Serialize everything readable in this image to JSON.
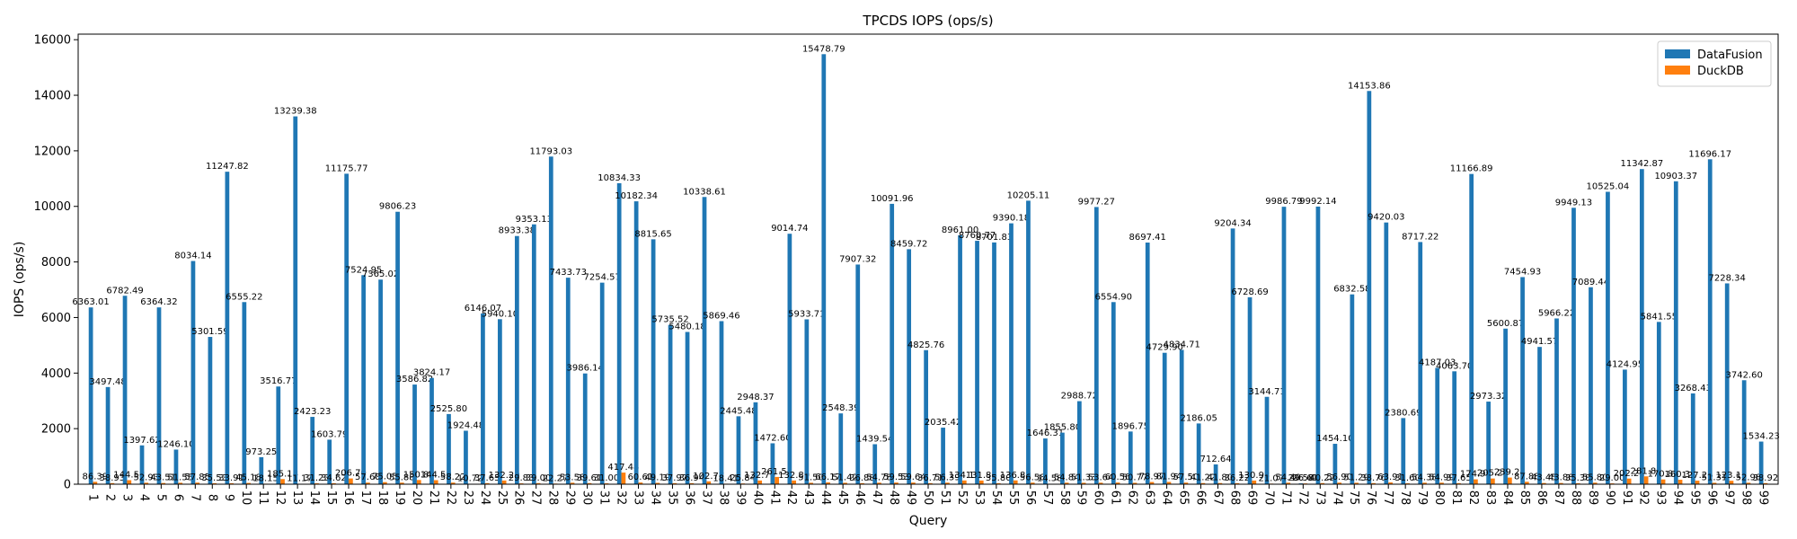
{
  "chart_data": {
    "type": "bar",
    "title": "TPCDS IOPS (ops/s)",
    "xlabel": "Query",
    "ylabel": "IOPS (ops/s)",
    "ylim": [
      0,
      16200
    ],
    "yticks": [
      0,
      2000,
      4000,
      6000,
      8000,
      10000,
      12000,
      14000,
      16000
    ],
    "legend_position": "top-right",
    "grid": false,
    "colors": {
      "DataFusion": "#1f77b4",
      "DuckDB": "#ff7f0e"
    },
    "categories": [
      "1",
      "2",
      "3",
      "4",
      "5",
      "6",
      "7",
      "8",
      "9",
      "10",
      "11",
      "12",
      "13",
      "14",
      "15",
      "16",
      "17",
      "18",
      "19",
      "20",
      "21",
      "22",
      "23",
      "24",
      "25",
      "26",
      "27",
      "28",
      "29",
      "30",
      "31",
      "32",
      "33",
      "34",
      "35",
      "36",
      "37",
      "38",
      "39",
      "40",
      "41",
      "42",
      "43",
      "44",
      "45",
      "46",
      "47",
      "48",
      "49",
      "50",
      "51",
      "52",
      "53",
      "54",
      "55",
      "56",
      "57",
      "58",
      "59",
      "60",
      "61",
      "62",
      "63",
      "64",
      "65",
      "66",
      "67",
      "68",
      "69",
      "70",
      "71",
      "72",
      "73",
      "74",
      "75",
      "76",
      "77",
      "78",
      "79",
      "80",
      "81",
      "82",
      "83",
      "84",
      "85",
      "86",
      "87",
      "88",
      "89",
      "90",
      "91",
      "92",
      "93",
      "94",
      "95",
      "96",
      "97",
      "98",
      "99"
    ],
    "series": [
      {
        "name": "DataFusion",
        "values": [
          6363.01,
          3497.48,
          6782.49,
          1397.62,
          6364.32,
          1246.1,
          8034.14,
          5301.59,
          11247.82,
          6555.22,
          973.25,
          3516.77,
          13239.38,
          2423.23,
          1603.79,
          11175.77,
          7524.95,
          7365.02,
          9806.23,
          3586.82,
          3824.17,
          2525.8,
          1924.48,
          6146.07,
          5940.1,
          8933.38,
          9353.13,
          11793.03,
          7433.73,
          3986.14,
          7254.57,
          10834.33,
          10182.34,
          8815.65,
          5735.52,
          5480.18,
          10338.61,
          5869.46,
          2445.48,
          2948.37,
          1472.6,
          9014.74,
          5933.71,
          15478.79,
          2548.39,
          7907.32,
          1439.54,
          10091.96,
          8459.72,
          4825.76,
          2035.42,
          8961.0,
          8760.77,
          8701.83,
          9390.18,
          10205.11,
          1646.31,
          1855.8,
          2988.72,
          9977.27,
          6554.9,
          1896.75,
          8697.41,
          4729.9,
          4834.71,
          2186.05,
          712.64,
          9204.34,
          6728.69,
          3144.71,
          9986.79,
          29.58,
          9992.14,
          1454.1,
          6832.58,
          14153.86,
          9420.03,
          2380.69,
          8717.22,
          4187.03,
          4063.7,
          11166.89,
          2973.32,
          5600.87,
          7454.93,
          4941.57,
          5966.22,
          9949.13,
          7089.44,
          10525.04,
          4124.95,
          11342.87,
          5841.55,
          10903.37,
          3268.43,
          11696.17,
          7228.34,
          3742.6,
          1534.23
        ],
        "labels": [
          "6363.01",
          "3497.48",
          "6782.49",
          "1397.62",
          "6364.32",
          "1246.10",
          "8034.14",
          "5301.59",
          "11247.82",
          "6555.22",
          "973.25",
          "3516.77",
          "13239.38",
          "2423.23",
          "1603.79",
          "11175.77",
          "7524.95",
          "7365.02",
          "9806.23",
          "3586.82",
          "3824.17",
          "2525.80",
          "1924.48",
          "6146.07",
          "5940.10",
          "8933.38",
          "9353.13",
          "11793.03",
          "7433.73",
          "3986.14",
          "7254.57",
          "10834.33",
          "10182.34",
          "8815.65",
          "5735.52",
          "5480.18",
          "10338.61",
          "5869.46",
          "2445.48",
          "2948.37",
          "1472.60",
          "9014.74",
          "5933.71",
          "15478.79",
          "2548.39",
          "7907.32",
          "1439.54",
          "10091.96",
          "8459.72",
          "4825.76",
          "2035.42",
          "8961.00",
          "8760.77",
          "8701.83",
          "9390.18",
          "10205.11",
          "1646.31",
          "1855.80",
          "2988.72",
          "9977.27",
          "6554.90",
          "1896.75",
          "8697.41",
          "4729.90",
          "4834.71",
          "2186.05",
          "712.64",
          "9204.34",
          "6728.69",
          "3144.71",
          "9986.79",
          "29.58",
          "9992.14",
          "1454.10",
          "6832.58",
          "14153.86",
          "9420.03",
          "2380.69",
          "8717.22",
          "4187.03",
          "4063.70",
          "11166.89",
          "2973.32",
          "5600.87",
          "7454.93",
          "4941.57",
          "5966.22",
          "9949.13",
          "7089.44",
          "10525.04",
          "4124.95",
          "11342.87",
          "5841.55",
          "10903.37",
          "3268.43",
          "11696.17",
          "7228.34",
          "3742.60",
          "1534.23"
        ]
      },
      {
        "name": "DuckDB",
        "values": [
          86.39,
          38.93,
          144.58,
          52.93,
          43.51,
          51.55,
          57.85,
          35.53,
          33.91,
          45.18,
          18.15,
          185.18,
          11.17,
          31.23,
          34.62,
          206.7,
          57.68,
          75.05,
          55.88,
          150.86,
          144.59,
          58.22,
          10.72,
          37.65,
          132.2,
          29.83,
          39.0,
          22.27,
          53.58,
          39.61,
          31.0,
          417.48,
          60.61,
          49.19,
          37.97,
          36.94,
          102.77,
          18.41,
          25.84,
          132.7,
          261.52,
          132.89,
          51.5,
          66.17,
          51.42,
          36.88,
          54.78,
          59.53,
          59.64,
          36.71,
          56.39,
          134.12,
          131.86,
          35.8,
          136.83,
          56.58,
          14.58,
          54.84,
          51.33,
          53.64,
          60.56,
          50.77,
          78.97,
          81.94,
          57.5,
          41.22,
          41.8,
          36.22,
          130.93,
          21.07,
          54.4,
          26.61,
          40.22,
          56.9,
          51.29,
          38.76,
          63.91,
          31.6,
          54.38,
          54.99,
          37.65,
          174.99,
          205.2,
          239.24,
          87.88,
          43.45,
          43.88,
          35.38,
          55.8,
          29.0,
          202.21,
          281.82,
          170.85,
          160.33,
          127.26,
          51.31,
          123.12,
          52.98,
          38.92
        ],
        "labels": [
          "86.39",
          "38.93",
          "144.58",
          "52.93",
          "43.51",
          "51.55",
          "57.85",
          "35.53",
          "33.91",
          "45.18",
          "18.15",
          "185.18",
          "11.17",
          "31.23",
          "34.62",
          "206.70",
          "57.68",
          "75.05",
          "55.88",
          "150.86",
          "144.59",
          "58.22",
          "10.72",
          "37.65",
          "132.20",
          "29.83",
          "39.00",
          "22.27",
          "53.58",
          "39.61",
          "31.00",
          "417.48",
          "60.61",
          "49.19",
          "37.97",
          "36.94",
          "102.77",
          "18.41",
          "25.84",
          "132.70",
          "261.52",
          "132.89",
          "51.50",
          "66.17",
          "51.42",
          "36.88",
          "54.78",
          "59.53",
          "59.64",
          "36.71",
          "56.39",
          "134.12",
          "131.86",
          "35.80",
          "136.83",
          "56.58",
          "14.58",
          "54.84",
          "51.33",
          "53.64",
          "60.56",
          "50.77",
          "78.97",
          "81.94",
          "57.50",
          "41.22",
          "41.80",
          "36.22",
          "130.93",
          "21.07",
          "54.40",
          "26.61",
          "40.22",
          "56.90",
          "51.29",
          "38.76",
          "63.91",
          "31.60",
          "54.38",
          "54.99",
          "37.65",
          "174.99",
          "205.20",
          "239.24",
          "87.88",
          "43.45",
          "43.88",
          "35.38",
          "55.80",
          "29.00",
          "202.21",
          "281.82",
          "170.85",
          "160.33",
          "127.26",
          "51.31",
          "123.12",
          "52.98",
          "38.92"
        ]
      }
    ]
  }
}
